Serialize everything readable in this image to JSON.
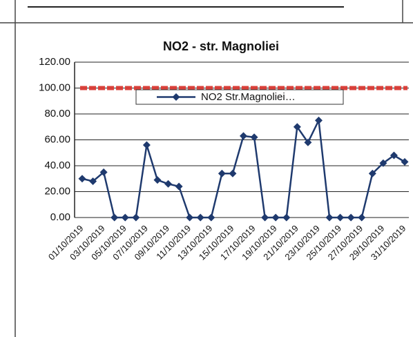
{
  "chart_data": {
    "type": "line",
    "title": "NO2 - str. Magnoliei",
    "categories": [
      "01/10/2019",
      null,
      "03/10/2019",
      null,
      "05/10/2019",
      null,
      "07/10/2019",
      null,
      "09/10/2019",
      null,
      "11/10/2019",
      null,
      "13/10/2019",
      null,
      "15/10/2019",
      null,
      "17/10/2019",
      null,
      "19/10/2019",
      null,
      "21/10/2019",
      null,
      "23/10/2019",
      null,
      "25/10/2019",
      null,
      "27/10/2019",
      null,
      "29/10/2019",
      null,
      "31/10/2019"
    ],
    "series": [
      {
        "name": "NO2 Str.Magnoliei…",
        "color": "#1f3a6e",
        "values": [
          30,
          28,
          35,
          0,
          0,
          0,
          56,
          29,
          26,
          24,
          0,
          0,
          0,
          34,
          34,
          63,
          62,
          0,
          0,
          0,
          70,
          58,
          75,
          0,
          0,
          0,
          0,
          34,
          42,
          48,
          43
        ]
      }
    ],
    "threshold": {
      "value": 100,
      "color": "#d9403a"
    },
    "ylim": [
      0,
      120
    ],
    "yticks": [
      {
        "value": 0,
        "label": "0.00"
      },
      {
        "value": 20,
        "label": "20.00"
      },
      {
        "value": 40,
        "label": "40.00"
      },
      {
        "value": 60,
        "label": "60.00"
      },
      {
        "value": 80,
        "label": "80.00"
      },
      {
        "value": 100,
        "label": "100.00"
      },
      {
        "value": 120,
        "label": "120.00"
      }
    ],
    "grid": true,
    "legend": "top"
  }
}
